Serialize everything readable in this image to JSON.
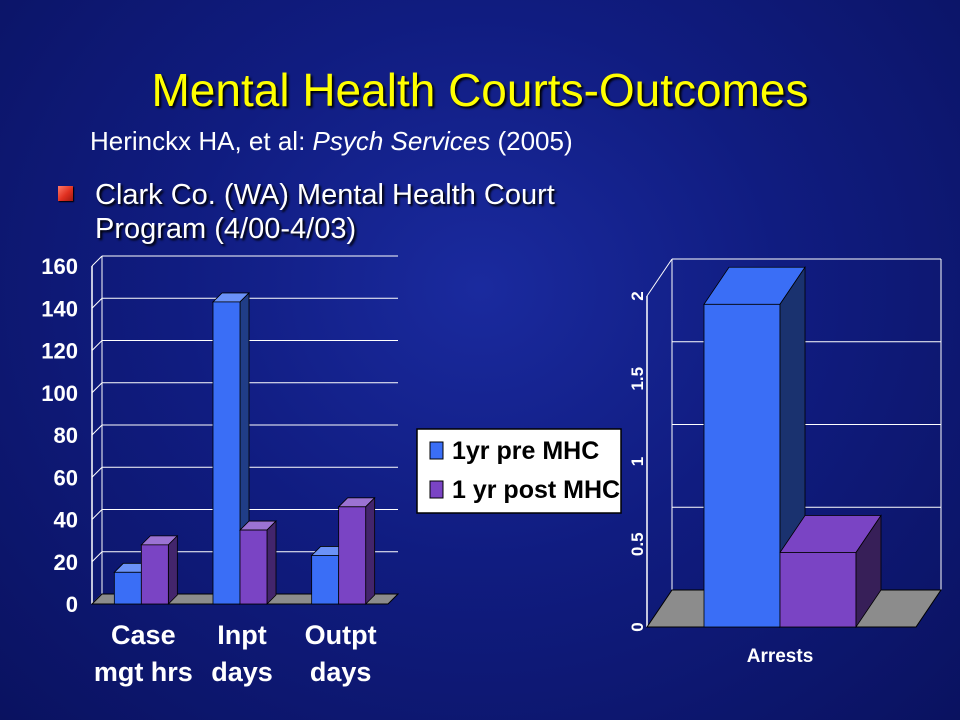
{
  "slide": {
    "title": "Mental Health Courts-Outcomes",
    "citation": {
      "authors": "Herinckx HA, et al: ",
      "journal": "Psych Services",
      "year": " (2005)"
    },
    "bullet": "Clark Co. (WA) Mental Health Court Program (4/00-4/03)"
  },
  "colors": {
    "background": "#101c80",
    "title": "#ffff00",
    "pre_series": "#3a6ef6",
    "post_series": "#7a44c4",
    "floor": "#8c8c8c",
    "bullet": "#e03020"
  },
  "chart_data": [
    {
      "type": "bar",
      "categories": [
        "Case mgt hrs",
        "Inpt days",
        "Outpt days"
      ],
      "category_lines": [
        [
          "Case",
          "mgt hrs"
        ],
        [
          "Inpt",
          "days"
        ],
        [
          "Outpt",
          "days"
        ]
      ],
      "series": [
        {
          "name": "1yr pre MHC",
          "values": [
            15,
            143,
            23
          ]
        },
        {
          "name": "1 yr post MHC",
          "values": [
            28,
            35,
            46
          ]
        }
      ],
      "ylim": [
        0,
        160
      ],
      "yticks": [
        "0",
        "20",
        "40",
        "60",
        "80",
        "100",
        "120",
        "140",
        "160"
      ],
      "grid": true,
      "legend": "right"
    },
    {
      "type": "bar",
      "categories": [
        "Arrests"
      ],
      "series": [
        {
          "name": "1yr pre MHC",
          "values": [
            1.95
          ]
        },
        {
          "name": "1 yr post MHC",
          "values": [
            0.45
          ]
        }
      ],
      "ylim": [
        0,
        2
      ],
      "yticks": [
        "0",
        "0.5",
        "1",
        "1.5",
        "2"
      ],
      "grid": true
    }
  ]
}
